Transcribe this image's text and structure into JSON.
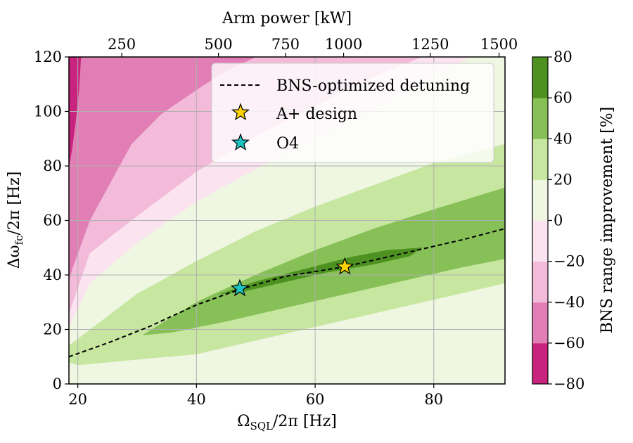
{
  "chart_data": {
    "type": "heatmap",
    "subtype": "filled-contour",
    "xlabel": "Ω_SQL/2π [Hz]",
    "xlabel_main": "Ω",
    "xlabel_sub": "SQL",
    "xlabel_rest": "/2π [Hz]",
    "ylabel": "Δω_fc/2π [Hz]",
    "ylabel_main": "Δω",
    "ylabel_sub": "fc",
    "ylabel_rest": "/2π [Hz]",
    "top_xlabel": "Arm power [kW]",
    "xlim": [
      18.5,
      92
    ],
    "ylim": [
      0,
      120
    ],
    "xticks": [
      20,
      40,
      60,
      80
    ],
    "yticks": [
      0,
      20,
      40,
      60,
      80,
      100,
      120
    ],
    "top_ticks": [
      {
        "label": "250",
        "x": 27.4
      },
      {
        "label": "500",
        "x": 43.7
      },
      {
        "label": "750",
        "x": 55.0
      },
      {
        "label": "1000",
        "x": 64.8
      },
      {
        "label": "1250",
        "x": 79.4
      },
      {
        "label": "1500",
        "x": 91.0
      }
    ],
    "colorbar": {
      "label": "BNS range improvement [%]",
      "levels": [
        -80,
        -60,
        -40,
        -20,
        0,
        20,
        40,
        60,
        80
      ],
      "tick_labels": [
        "−80",
        "−60",
        "−40",
        "−20",
        "0",
        "20",
        "40",
        "60",
        "80"
      ],
      "colors": [
        "#c8237e",
        "#e17eb5",
        "#f4bad9",
        "#fbe3ef",
        "#eff6e2",
        "#c7e6a0",
        "#86c057",
        "#4d9221"
      ]
    },
    "regions": [
      {
        "level": "−80 to −60",
        "color": "#c8237e",
        "boundary": [
          [
            18.5,
            120
          ],
          [
            20.5,
            120
          ],
          [
            20.2,
            108
          ],
          [
            19.6,
            96
          ],
          [
            19.0,
            86
          ],
          [
            18.5,
            80
          ]
        ]
      },
      {
        "level": "−60 to −40",
        "color": "#e17eb5",
        "boundary": [
          [
            18.5,
            120
          ],
          [
            50,
            120
          ],
          [
            45,
            115
          ],
          [
            40,
            108
          ],
          [
            34,
            99
          ],
          [
            29,
            88
          ],
          [
            25,
            72
          ],
          [
            22,
            60
          ],
          [
            19,
            42
          ],
          [
            18.5,
            38
          ]
        ]
      },
      {
        "level": "−40 to −20",
        "color": "#f4bad9",
        "boundary": [
          [
            18.5,
            120
          ],
          [
            78,
            120
          ],
          [
            70,
            113
          ],
          [
            60,
            102
          ],
          [
            50,
            91
          ],
          [
            40,
            78
          ],
          [
            32,
            65
          ],
          [
            26,
            55
          ],
          [
            22,
            48
          ],
          [
            18.5,
            26
          ]
        ]
      },
      {
        "level": "−20 to 0",
        "color": "#fbe3ef",
        "boundary": [
          [
            18.5,
            120
          ],
          [
            86,
            120
          ],
          [
            80,
            113
          ],
          [
            70,
            101
          ],
          [
            60,
            90
          ],
          [
            50,
            79
          ],
          [
            40,
            67
          ],
          [
            30,
            52
          ],
          [
            22,
            37
          ],
          [
            18.5,
            21
          ]
        ]
      },
      {
        "level": "0 to 20",
        "color": "#eff6e2",
        "boundary": [
          [
            18.5,
            0
          ],
          [
            92,
            0
          ],
          [
            92,
            120
          ],
          [
            18.5,
            120
          ]
        ]
      },
      {
        "level": "20 to 40",
        "color": "#c7e6a0",
        "boundary": [
          [
            18.5,
            14
          ],
          [
            30,
            33
          ],
          [
            40,
            45
          ],
          [
            50,
            56
          ],
          [
            60,
            65
          ],
          [
            70,
            73
          ],
          [
            80,
            81
          ],
          [
            92,
            88
          ],
          [
            92,
            37
          ],
          [
            80,
            31
          ],
          [
            70,
            26
          ],
          [
            60,
            21
          ],
          [
            50,
            16
          ],
          [
            40,
            11
          ],
          [
            30,
            9
          ],
          [
            20,
            7
          ],
          [
            18.5,
            8
          ]
        ]
      },
      {
        "level": "40 to 60",
        "color": "#86c057",
        "boundary": [
          [
            31,
            18
          ],
          [
            40,
            30
          ],
          [
            50,
            40
          ],
          [
            60,
            49
          ],
          [
            70,
            57
          ],
          [
            80,
            64
          ],
          [
            92,
            72
          ],
          [
            92,
            46
          ],
          [
            85,
            43
          ],
          [
            75,
            38
          ],
          [
            65,
            33
          ],
          [
            55,
            28
          ],
          [
            45,
            23
          ],
          [
            36,
            19
          ],
          [
            31,
            18
          ]
        ]
      },
      {
        "level": "60 to 80",
        "color": "#4d9221",
        "boundary": [
          [
            44,
            33
          ],
          [
            50,
            37.5
          ],
          [
            58,
            42
          ],
          [
            66,
            46.5
          ],
          [
            72,
            49
          ],
          [
            78,
            50
          ],
          [
            76,
            47
          ],
          [
            70,
            44
          ],
          [
            62,
            41
          ],
          [
            54,
            37
          ],
          [
            48,
            34
          ],
          [
            44,
            33
          ]
        ]
      }
    ],
    "series": [
      {
        "name": "BNS-optimized detuning",
        "style": "dashed",
        "color": "#000000",
        "points": [
          [
            18.5,
            10
          ],
          [
            25,
            15
          ],
          [
            32,
            21
          ],
          [
            40,
            29
          ],
          [
            47,
            34.5
          ],
          [
            55,
            39.5
          ],
          [
            65,
            43
          ],
          [
            75,
            48
          ],
          [
            85,
            53
          ],
          [
            92,
            57
          ]
        ]
      }
    ],
    "markers": [
      {
        "name": "A+ design",
        "x": 65,
        "y": 43,
        "color": "#ffd400"
      },
      {
        "name": "O4",
        "x": 47.3,
        "y": 35,
        "color": "#1cc4c4"
      }
    ],
    "legend": {
      "placement": "upper-right",
      "entries": [
        "BNS-optimized detuning",
        "A+ design",
        "O4"
      ]
    }
  }
}
